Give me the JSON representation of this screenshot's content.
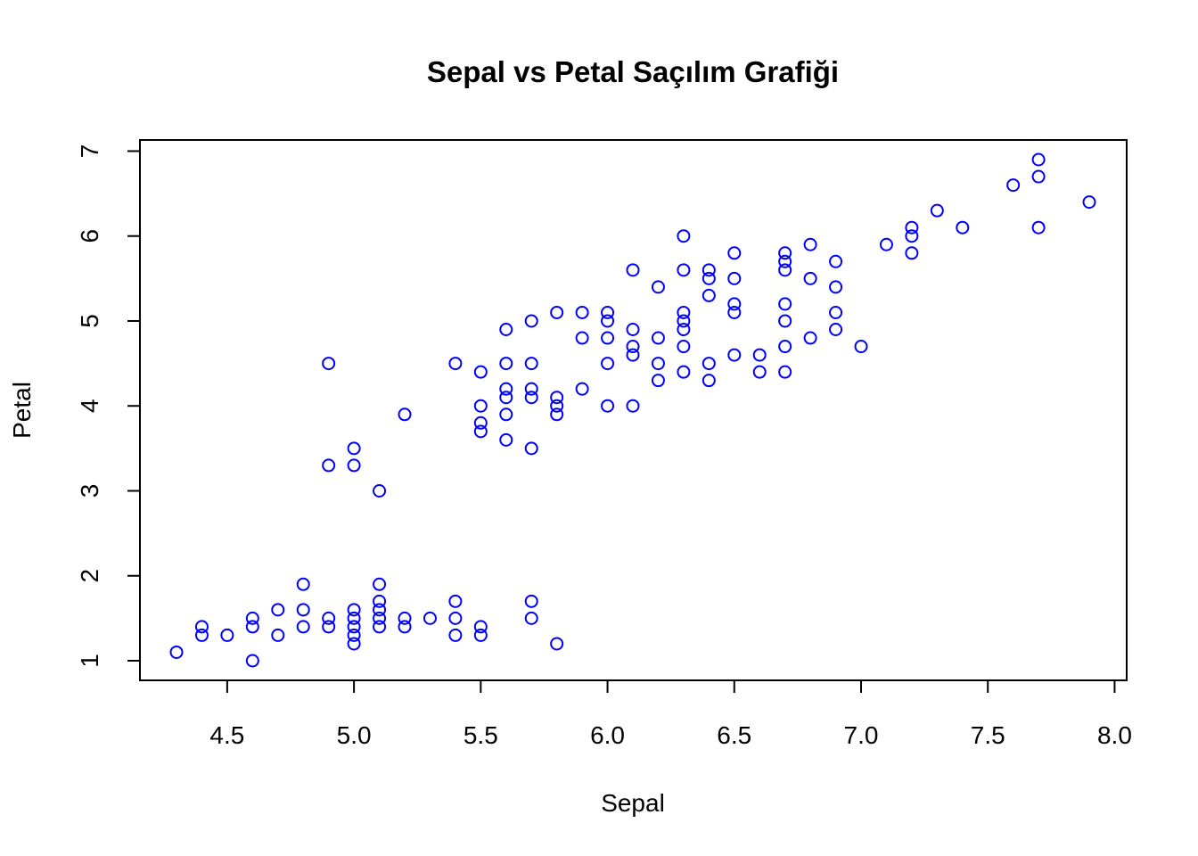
{
  "chart_data": {
    "type": "scatter",
    "title": "Sepal vs Petal Saçılım Grafiği",
    "xlabel": "Sepal",
    "ylabel": "Petal",
    "xlim": [
      4.3,
      7.9
    ],
    "ylim": [
      1,
      6.9
    ],
    "x_ticks": [
      4.5,
      5.0,
      5.5,
      6.0,
      6.5,
      7.0,
      7.5,
      8.0
    ],
    "x_tick_labels": [
      "4.5",
      "5.0",
      "5.5",
      "6.0",
      "6.5",
      "7.0",
      "7.5",
      "8.0"
    ],
    "y_ticks": [
      1,
      2,
      3,
      4,
      5,
      6,
      7
    ],
    "y_tick_labels": [
      "1",
      "2",
      "3",
      "4",
      "5",
      "6",
      "7"
    ],
    "grid": false,
    "marker_color": "#0000ff",
    "points": [
      [
        4.3,
        1.1
      ],
      [
        4.4,
        1.4
      ],
      [
        4.4,
        1.3
      ],
      [
        4.5,
        1.3
      ],
      [
        4.6,
        1.5
      ],
      [
        4.6,
        1.4
      ],
      [
        4.6,
        1.0
      ],
      [
        4.7,
        1.6
      ],
      [
        4.7,
        1.3
      ],
      [
        4.8,
        1.9
      ],
      [
        4.8,
        1.6
      ],
      [
        4.8,
        1.4
      ],
      [
        4.9,
        1.5
      ],
      [
        4.9,
        1.4
      ],
      [
        5.0,
        1.6
      ],
      [
        5.0,
        1.5
      ],
      [
        5.0,
        1.4
      ],
      [
        5.0,
        1.3
      ],
      [
        5.0,
        1.2
      ],
      [
        5.1,
        1.9
      ],
      [
        5.1,
        1.7
      ],
      [
        5.1,
        1.6
      ],
      [
        5.1,
        1.5
      ],
      [
        5.1,
        1.4
      ],
      [
        5.2,
        1.5
      ],
      [
        5.2,
        1.4
      ],
      [
        5.3,
        1.5
      ],
      [
        5.4,
        1.7
      ],
      [
        5.4,
        1.5
      ],
      [
        5.4,
        1.3
      ],
      [
        5.5,
        1.4
      ],
      [
        5.5,
        1.3
      ],
      [
        5.7,
        1.7
      ],
      [
        5.7,
        1.5
      ],
      [
        5.8,
        1.2
      ],
      [
        4.9,
        4.5
      ],
      [
        4.9,
        3.3
      ],
      [
        5.0,
        3.5
      ],
      [
        5.0,
        3.3
      ],
      [
        5.1,
        3.0
      ],
      [
        5.2,
        3.9
      ],
      [
        5.4,
        4.5
      ],
      [
        5.5,
        4.4
      ],
      [
        5.5,
        4.0
      ],
      [
        5.5,
        3.8
      ],
      [
        5.5,
        3.7
      ],
      [
        5.6,
        4.9
      ],
      [
        5.6,
        4.5
      ],
      [
        5.6,
        4.2
      ],
      [
        5.6,
        4.1
      ],
      [
        5.6,
        3.9
      ],
      [
        5.6,
        3.6
      ],
      [
        5.7,
        5.0
      ],
      [
        5.7,
        4.5
      ],
      [
        5.7,
        4.2
      ],
      [
        5.7,
        4.1
      ],
      [
        5.7,
        3.5
      ],
      [
        5.8,
        5.1
      ],
      [
        5.8,
        4.1
      ],
      [
        5.8,
        4.0
      ],
      [
        5.8,
        3.9
      ],
      [
        5.9,
        5.1
      ],
      [
        5.9,
        4.8
      ],
      [
        5.9,
        4.2
      ],
      [
        6.0,
        5.1
      ],
      [
        6.0,
        5.0
      ],
      [
        6.0,
        4.8
      ],
      [
        6.0,
        4.5
      ],
      [
        6.0,
        4.0
      ],
      [
        6.1,
        5.6
      ],
      [
        6.1,
        4.9
      ],
      [
        6.1,
        4.7
      ],
      [
        6.1,
        4.6
      ],
      [
        6.1,
        4.0
      ],
      [
        6.2,
        5.4
      ],
      [
        6.2,
        4.8
      ],
      [
        6.2,
        4.5
      ],
      [
        6.2,
        4.3
      ],
      [
        6.3,
        6.0
      ],
      [
        6.3,
        5.6
      ],
      [
        6.3,
        5.1
      ],
      [
        6.3,
        5.0
      ],
      [
        6.3,
        4.9
      ],
      [
        6.3,
        4.7
      ],
      [
        6.3,
        4.4
      ],
      [
        6.4,
        5.6
      ],
      [
        6.4,
        5.5
      ],
      [
        6.4,
        5.3
      ],
      [
        6.4,
        4.5
      ],
      [
        6.4,
        4.3
      ],
      [
        6.5,
        5.8
      ],
      [
        6.5,
        5.5
      ],
      [
        6.5,
        5.2
      ],
      [
        6.5,
        5.1
      ],
      [
        6.5,
        4.6
      ],
      [
        6.6,
        4.6
      ],
      [
        6.6,
        4.4
      ],
      [
        6.7,
        5.8
      ],
      [
        6.7,
        5.7
      ],
      [
        6.7,
        5.6
      ],
      [
        6.7,
        5.2
      ],
      [
        6.7,
        5.0
      ],
      [
        6.7,
        4.7
      ],
      [
        6.7,
        4.4
      ],
      [
        6.8,
        5.9
      ],
      [
        6.8,
        5.5
      ],
      [
        6.8,
        4.8
      ],
      [
        6.9,
        5.7
      ],
      [
        6.9,
        5.4
      ],
      [
        6.9,
        5.1
      ],
      [
        6.9,
        4.9
      ],
      [
        7.0,
        4.7
      ],
      [
        7.1,
        5.9
      ],
      [
        7.2,
        6.1
      ],
      [
        7.2,
        6.0
      ],
      [
        7.2,
        5.8
      ],
      [
        7.3,
        6.3
      ],
      [
        7.4,
        6.1
      ],
      [
        7.6,
        6.6
      ],
      [
        7.7,
        6.9
      ],
      [
        7.7,
        6.7
      ],
      [
        7.7,
        6.1
      ],
      [
        7.9,
        6.4
      ]
    ]
  }
}
